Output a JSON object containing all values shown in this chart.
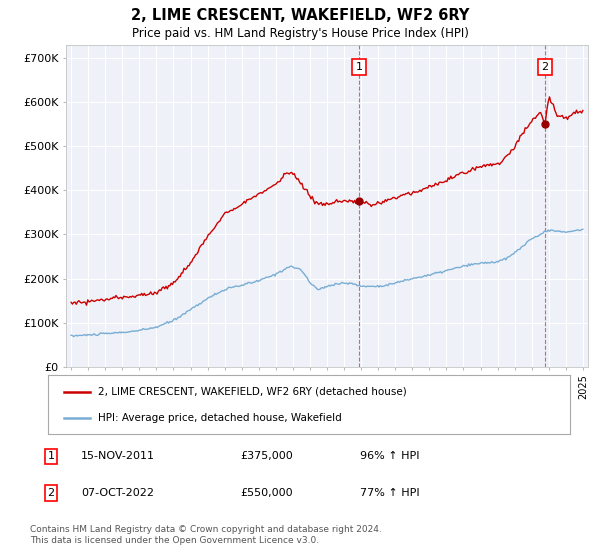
{
  "title": "2, LIME CRESCENT, WAKEFIELD, WF2 6RY",
  "subtitle": "Price paid vs. HM Land Registry's House Price Index (HPI)",
  "legend_line1": "2, LIME CRESCENT, WAKEFIELD, WF2 6RY (detached house)",
  "legend_line2": "HPI: Average price, detached house, Wakefield",
  "annotation1_label": "1",
  "annotation1_date": "15-NOV-2011",
  "annotation1_price": "£375,000",
  "annotation1_hpi": "96% ↑ HPI",
  "annotation1_year": 2011.88,
  "annotation1_value": 375000,
  "annotation2_label": "2",
  "annotation2_date": "07-OCT-2022",
  "annotation2_price": "£550,000",
  "annotation2_hpi": "77% ↑ HPI",
  "annotation2_year": 2022.77,
  "annotation2_value": 550000,
  "hpi_color": "#7aadd4",
  "price_color": "#cc0000",
  "dot_color": "#990000",
  "background_color": "#ffffff",
  "plot_bg_color": "#eef2f8",
  "grid_color": "#ffffff",
  "footer_text": "Contains HM Land Registry data © Crown copyright and database right 2024.\nThis data is licensed under the Open Government Licence v3.0.",
  "ylim": [
    0,
    730000
  ],
  "yticks": [
    0,
    100000,
    200000,
    300000,
    400000,
    500000,
    600000,
    700000
  ],
  "ytick_labels": [
    "£0",
    "£100K",
    "£200K",
    "£300K",
    "£400K",
    "£500K",
    "£600K",
    "£700K"
  ]
}
